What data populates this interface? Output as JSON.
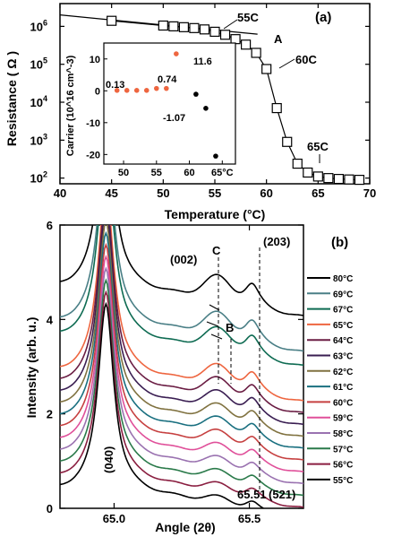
{
  "chart_data": [
    {
      "panel": "(a)",
      "type": "line",
      "xlabel": "Temperature (°C)",
      "ylabel": "Resistance ( Ω )",
      "xlim": [
        40,
        70
      ],
      "ylim_log10": [
        1.85,
        6.6
      ],
      "yscale": "log",
      "xticks": [
        "40",
        "45",
        "50",
        "55",
        "60",
        "65",
        "70"
      ],
      "yticks": [
        {
          "exp": 2,
          "label": "10"
        },
        {
          "exp": 3,
          "label": "10"
        },
        {
          "exp": 4,
          "label": "10"
        },
        {
          "exp": 5,
          "label": "10"
        },
        {
          "exp": 6,
          "label": "10"
        }
      ],
      "series": [
        {
          "marker": "open-square",
          "x": [
            45,
            50,
            51,
            52,
            53,
            54,
            55,
            56,
            57,
            58,
            59,
            60,
            61,
            62,
            63,
            64,
            65,
            66,
            67,
            68,
            69
          ],
          "y": [
            1400000,
            1050000,
            1000000,
            950000,
            900000,
            830000,
            720000,
            600000,
            460000,
            330000,
            200000,
            75000,
            7000,
            900,
            240,
            140,
            110,
            100,
            95,
            92,
            90
          ]
        }
      ],
      "line_A": {
        "x": [
          40,
          60
        ],
        "y": [
          2000000,
          500000
        ]
      },
      "annotations": [
        "55C",
        "A",
        "60C",
        "65C"
      ],
      "inset": {
        "ylabel": "Carrier (10^16 cm^-3)",
        "xlim": [
          47,
          67
        ],
        "ylim": [
          -23,
          15
        ],
        "xticks": [
          "50",
          "55",
          "60",
          "65°C"
        ],
        "yticks": [
          "10",
          "0",
          "-10",
          "-20"
        ],
        "points": [
          {
            "x": 49,
            "y": 0.13,
            "color": "#ee6640"
          },
          {
            "x": 50.5,
            "y": 0.13,
            "color": "#ee6640"
          },
          {
            "x": 52,
            "y": 0.13,
            "color": "#ee6640"
          },
          {
            "x": 53.5,
            "y": 0.13,
            "color": "#ee6640"
          },
          {
            "x": 55,
            "y": 0.74,
            "color": "#ee6640"
          },
          {
            "x": 56.5,
            "y": 0.74,
            "color": "#ee6640"
          },
          {
            "x": 58,
            "y": 11.6,
            "color": "#ee6640"
          },
          {
            "x": 61,
            "y": -1.07,
            "color": "#000000"
          },
          {
            "x": 62.5,
            "y": -5.5,
            "color": "#000000"
          },
          {
            "x": 64,
            "y": -20.5,
            "color": "#000000"
          }
        ],
        "labels": [
          "0.13",
          "0.74",
          "11.6",
          "-1.07"
        ]
      }
    },
    {
      "panel": "(b)",
      "type": "line",
      "xlabel": "Angle (2θ)",
      "ylabel": "Intensity (arb. u.)",
      "xlim": [
        64.8,
        65.7
      ],
      "ylim": [
        0,
        6
      ],
      "xticks": [
        "65.0",
        "65.5"
      ],
      "yticks": [
        "0",
        "2",
        "4",
        "6"
      ],
      "legend_position": "right",
      "series": [
        {
          "name": "80°C",
          "color": "#000000",
          "offset": 5.0
        },
        {
          "name": "69°C",
          "color": "#4a7f86",
          "offset": 4.25
        },
        {
          "name": "67°C",
          "color": "#0e6b52",
          "offset": 3.95
        },
        {
          "name": "65°C",
          "color": "#ee6640",
          "offset": 3.2
        },
        {
          "name": "64°C",
          "color": "#6b1e44",
          "offset": 2.95
        },
        {
          "name": "63°C",
          "color": "#3a1e52",
          "offset": 2.7
        },
        {
          "name": "62°C",
          "color": "#807240",
          "offset": 2.45
        },
        {
          "name": "61°C",
          "color": "#1a7080",
          "offset": 2.2
        },
        {
          "name": "60°C",
          "color": "#c64040",
          "offset": 1.95
        },
        {
          "name": "59°C",
          "color": "#e0509a",
          "offset": 1.7
        },
        {
          "name": "58°C",
          "color": "#9a72b0",
          "offset": 1.45
        },
        {
          "name": "57°C",
          "color": "#2a7a4a",
          "offset": 1.2
        },
        {
          "name": "56°C",
          "color": "#8a1e40",
          "offset": 0.95
        },
        {
          "name": "55°C",
          "color": "#000000",
          "offset": 0.7
        }
      ],
      "annotations": [
        "(002)",
        "C",
        "(203)",
        "B",
        "(040)",
        "65.51",
        "(521)"
      ]
    }
  ]
}
